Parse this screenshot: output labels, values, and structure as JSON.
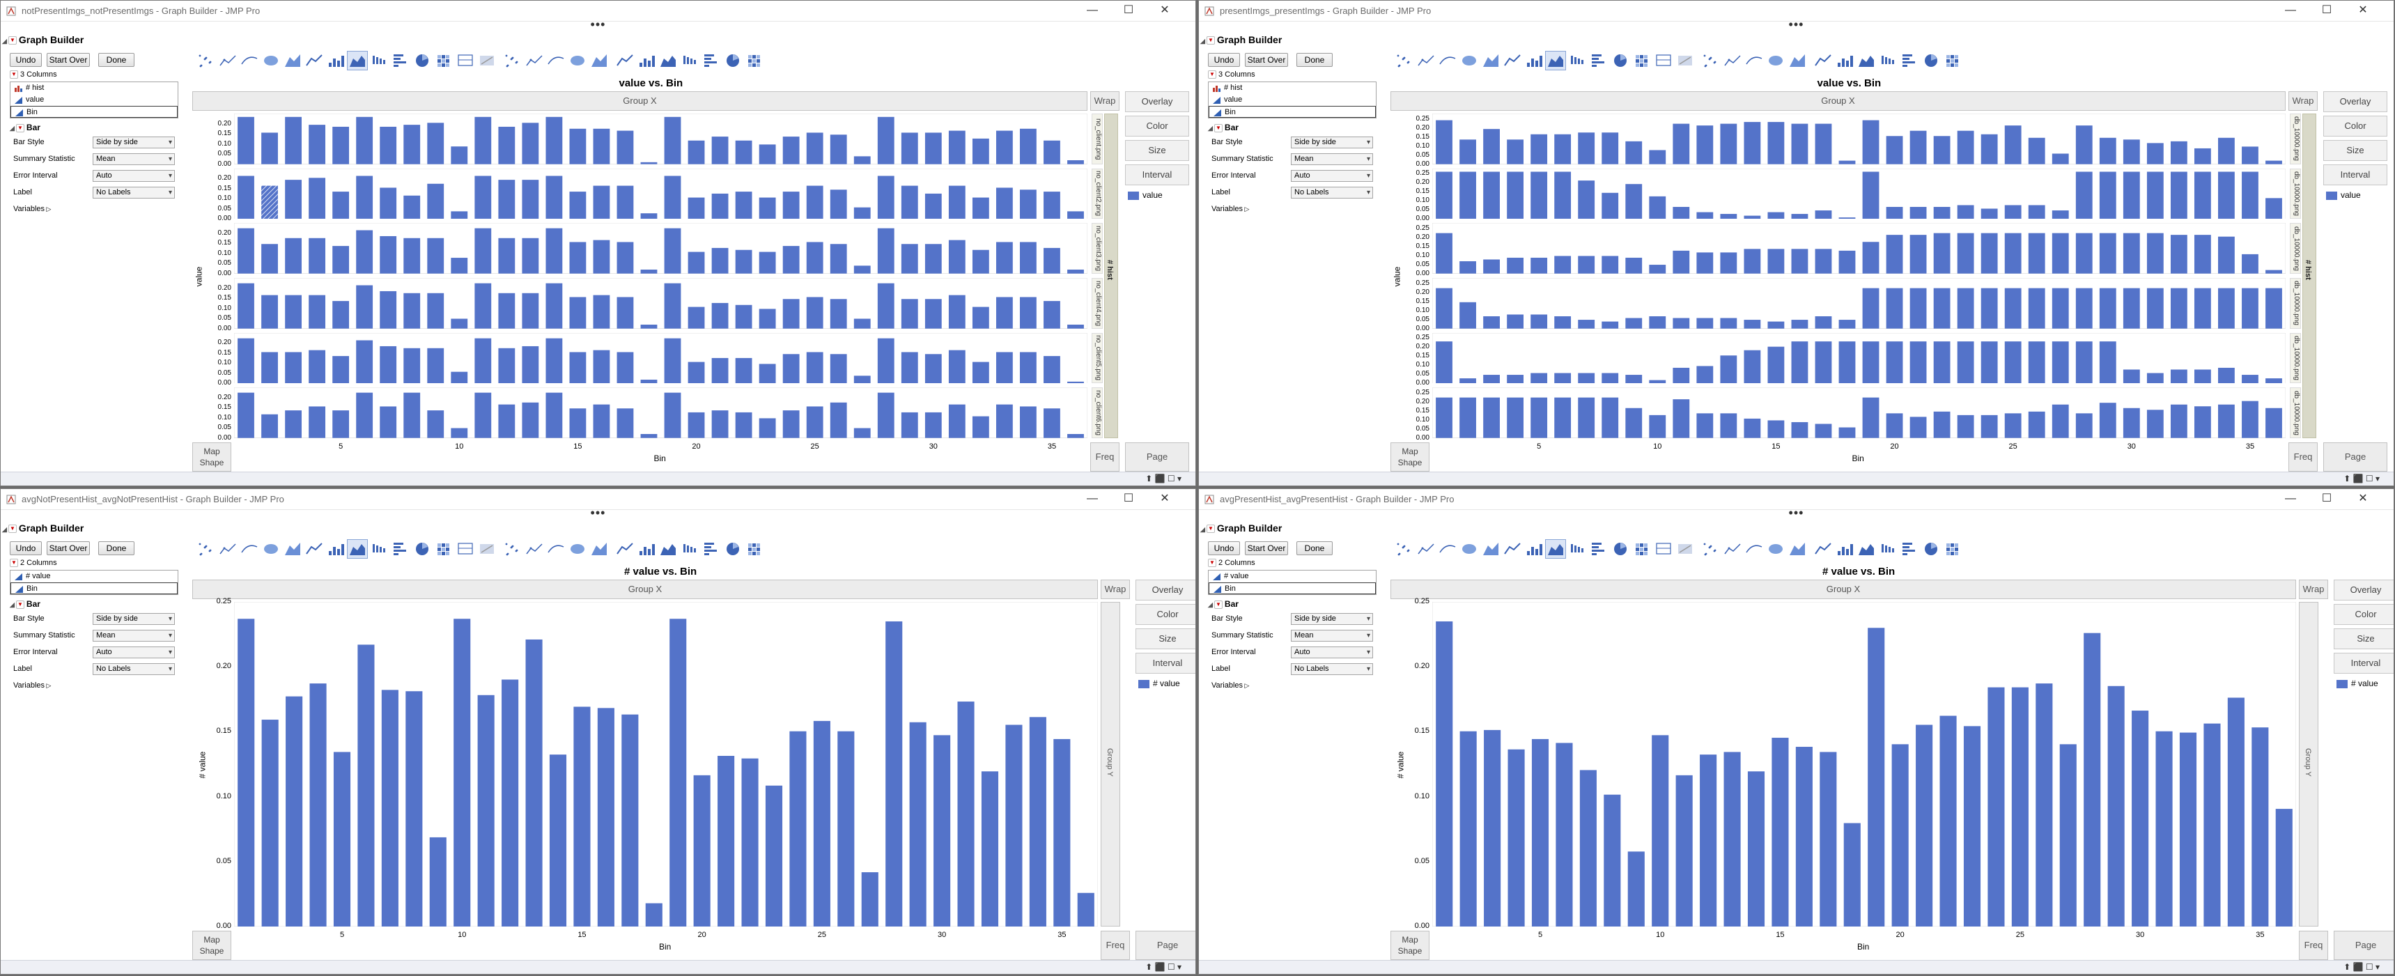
{
  "windows": [
    {
      "title": "notPresentImgs_notPresentImgs - Graph Builder - JMP Pro",
      "graph_title": "value vs. Bin",
      "columns_count": "3 Columns",
      "columns": [
        "# hist",
        "value",
        "Bin"
      ],
      "y_label": "value",
      "overlay_label": "Group Y",
      "wrap_label": "Wrap",
      "side_label": "# hist",
      "facet_labels": [
        "no_client.png",
        "no_client2.png",
        "no_client3.png",
        "no_client4.png",
        "no_client5.png",
        "no_client6.png"
      ],
      "legend": "value",
      "y_ticks": [
        "0.20",
        "0.15",
        "0.10",
        "0.05",
        "0.00"
      ],
      "chart_data": {
        "type": "bar",
        "xlabel": "Bin",
        "ylabel": "value",
        "ylim": [
          0,
          0.25
        ],
        "x_ticks": [
          5,
          10,
          15,
          20,
          25,
          30,
          35
        ],
        "categories": [
          1,
          2,
          3,
          4,
          5,
          6,
          7,
          8,
          9,
          10,
          11,
          12,
          13,
          14,
          15,
          16,
          17,
          18,
          19,
          20,
          21,
          22,
          23,
          24,
          25,
          26,
          27,
          28,
          29,
          30,
          31,
          32,
          33,
          34,
          35,
          36
        ],
        "series": [
          {
            "values": [
              0.24,
              0.16,
              0.24,
              0.2,
              0.19,
              0.24,
              0.19,
              0.2,
              0.21,
              0.09,
              0.24,
              0.19,
              0.21,
              0.24,
              0.18,
              0.18,
              0.17,
              0.01,
              0.24,
              0.12,
              0.14,
              0.12,
              0.1,
              0.14,
              0.16,
              0.15,
              0.04,
              0.24,
              0.16,
              0.16,
              0.17,
              0.13,
              0.17,
              0.18,
              0.12,
              0.02
            ]
          },
          {
            "values": [
              0.22,
              0.17,
              0.2,
              0.21,
              0.14,
              0.22,
              0.16,
              0.12,
              0.18,
              0.04,
              0.22,
              0.2,
              0.2,
              0.22,
              0.14,
              0.17,
              0.17,
              0.03,
              0.22,
              0.11,
              0.13,
              0.14,
              0.11,
              0.14,
              0.17,
              0.15,
              0.06,
              0.22,
              0.17,
              0.13,
              0.17,
              0.11,
              0.16,
              0.15,
              0.14,
              0.04
            ]
          },
          {
            "values": [
              0.23,
              0.15,
              0.18,
              0.18,
              0.14,
              0.22,
              0.19,
              0.18,
              0.18,
              0.08,
              0.23,
              0.18,
              0.18,
              0.23,
              0.16,
              0.17,
              0.16,
              0.02,
              0.23,
              0.11,
              0.13,
              0.12,
              0.11,
              0.14,
              0.16,
              0.15,
              0.04,
              0.23,
              0.15,
              0.15,
              0.17,
              0.12,
              0.16,
              0.16,
              0.13,
              0.02
            ]
          },
          {
            "values": [
              0.23,
              0.17,
              0.17,
              0.17,
              0.14,
              0.22,
              0.19,
              0.18,
              0.18,
              0.05,
              0.23,
              0.18,
              0.18,
              0.23,
              0.16,
              0.17,
              0.16,
              0.02,
              0.23,
              0.11,
              0.13,
              0.12,
              0.1,
              0.15,
              0.16,
              0.15,
              0.05,
              0.23,
              0.15,
              0.15,
              0.17,
              0.11,
              0.16,
              0.16,
              0.14,
              0.02
            ]
          },
          {
            "values": [
              0.23,
              0.16,
              0.16,
              0.17,
              0.14,
              0.22,
              0.19,
              0.18,
              0.18,
              0.06,
              0.23,
              0.18,
              0.19,
              0.23,
              0.16,
              0.17,
              0.16,
              0.02,
              0.23,
              0.11,
              0.13,
              0.13,
              0.1,
              0.15,
              0.16,
              0.15,
              0.04,
              0.23,
              0.16,
              0.15,
              0.17,
              0.11,
              0.16,
              0.16,
              0.14,
              0.01
            ]
          },
          {
            "values": [
              0.23,
              0.12,
              0.14,
              0.16,
              0.14,
              0.23,
              0.16,
              0.23,
              0.14,
              0.05,
              0.23,
              0.17,
              0.18,
              0.23,
              0.15,
              0.17,
              0.15,
              0.02,
              0.23,
              0.13,
              0.14,
              0.13,
              0.1,
              0.14,
              0.16,
              0.18,
              0.05,
              0.23,
              0.13,
              0.13,
              0.17,
              0.11,
              0.17,
              0.16,
              0.15,
              0.02
            ]
          }
        ]
      }
    },
    {
      "title": "presentImgs_presentImgs - Graph Builder - JMP Pro",
      "graph_title": "value vs. Bin",
      "columns_count": "3 Columns",
      "columns": [
        "# hist",
        "value",
        "Bin"
      ],
      "y_label": "value",
      "overlay_label": "Group Y",
      "wrap_label": "Wrap",
      "side_label": "# hist",
      "facet_labels": [
        "db_10000.png",
        "db_10000.png",
        "db_10000.png",
        "db_10000.png",
        "db_10000.png",
        "db_10000.png"
      ],
      "legend": "value",
      "y_ticks": [
        "0.25",
        "0.20",
        "0.15",
        "0.10",
        "0.05",
        "0.00"
      ],
      "chart_data": {
        "type": "bar",
        "xlabel": "Bin",
        "ylabel": "value",
        "ylim": [
          0,
          0.28
        ],
        "x_ticks": [
          5,
          10,
          15,
          20,
          25,
          30,
          35
        ],
        "categories": [
          1,
          2,
          3,
          4,
          5,
          6,
          7,
          8,
          9,
          10,
          11,
          12,
          13,
          14,
          15,
          16,
          17,
          18,
          19,
          20,
          21,
          22,
          23,
          24,
          25,
          26,
          27,
          28,
          29,
          30,
          31,
          32,
          33,
          34,
          35,
          36
        ],
        "series": [
          {
            "values": [
              0.25,
              0.14,
              0.2,
              0.14,
              0.17,
              0.17,
              0.18,
              0.18,
              0.13,
              0.08,
              0.23,
              0.22,
              0.23,
              0.24,
              0.24,
              0.23,
              0.23,
              0.02,
              0.25,
              0.16,
              0.19,
              0.16,
              0.19,
              0.17,
              0.22,
              0.15,
              0.06,
              0.22,
              0.15,
              0.14,
              0.12,
              0.13,
              0.09,
              0.15,
              0.1,
              0.02
            ]
          },
          {
            "values": [
              0.27,
              0.27,
              0.27,
              0.27,
              0.27,
              0.27,
              0.22,
              0.15,
              0.2,
              0.13,
              0.07,
              0.04,
              0.03,
              0.02,
              0.04,
              0.03,
              0.05,
              0.01,
              0.27,
              0.07,
              0.07,
              0.07,
              0.08,
              0.06,
              0.08,
              0.08,
              0.05,
              0.27,
              0.27,
              0.27,
              0.27,
              0.27,
              0.27,
              0.27,
              0.27,
              0.12
            ]
          },
          {
            "values": [
              0.23,
              0.07,
              0.08,
              0.09,
              0.09,
              0.1,
              0.1,
              0.1,
              0.09,
              0.05,
              0.13,
              0.12,
              0.12,
              0.14,
              0.14,
              0.14,
              0.14,
              0.13,
              0.18,
              0.22,
              0.22,
              0.23,
              0.23,
              0.23,
              0.23,
              0.23,
              0.23,
              0.23,
              0.23,
              0.23,
              0.23,
              0.22,
              0.22,
              0.21,
              0.11,
              0.02
            ]
          },
          {
            "values": [
              0.23,
              0.15,
              0.07,
              0.08,
              0.08,
              0.07,
              0.05,
              0.04,
              0.06,
              0.07,
              0.06,
              0.06,
              0.06,
              0.05,
              0.04,
              0.05,
              0.07,
              0.05,
              0.23,
              0.23,
              0.23,
              0.23,
              0.23,
              0.23,
              0.23,
              0.23,
              0.23,
              0.23,
              0.23,
              0.23,
              0.23,
              0.23,
              0.23,
              0.23,
              0.23,
              0.23
            ]
          },
          {
            "values": [
              0.24,
              0.03,
              0.05,
              0.05,
              0.06,
              0.06,
              0.06,
              0.06,
              0.05,
              0.02,
              0.09,
              0.1,
              0.16,
              0.19,
              0.21,
              0.24,
              0.24,
              0.24,
              0.24,
              0.24,
              0.24,
              0.24,
              0.24,
              0.24,
              0.24,
              0.24,
              0.24,
              0.24,
              0.24,
              0.08,
              0.06,
              0.08,
              0.08,
              0.09,
              0.05,
              0.03
            ]
          },
          {
            "values": [
              0.23,
              0.23,
              0.23,
              0.23,
              0.23,
              0.23,
              0.23,
              0.23,
              0.17,
              0.13,
              0.22,
              0.14,
              0.14,
              0.11,
              0.1,
              0.09,
              0.08,
              0.06,
              0.23,
              0.14,
              0.12,
              0.15,
              0.13,
              0.13,
              0.14,
              0.15,
              0.19,
              0.14,
              0.2,
              0.17,
              0.16,
              0.19,
              0.18,
              0.19,
              0.21,
              0.17
            ]
          }
        ]
      }
    },
    {
      "title": "avgNotPresentHist_avgNotPresentHist - Graph Builder - JMP Pro",
      "graph_title": "# value vs. Bin",
      "columns_count": "2 Columns",
      "columns": [
        "# value",
        "Bin"
      ],
      "y_label": "# value",
      "overlay_label": "Group Y",
      "wrap_label": "Wrap",
      "legend": "# value",
      "chart_data": {
        "type": "bar",
        "xlabel": "Bin",
        "ylabel": "# value",
        "ylim": [
          0,
          0.25
        ],
        "y_ticks": [
          "0.25",
          "0.20",
          "0.15",
          "0.10",
          "0.05",
          "0.00"
        ],
        "x_ticks": [
          5,
          10,
          15,
          20,
          25,
          30,
          35
        ],
        "categories": [
          1,
          2,
          3,
          4,
          5,
          6,
          7,
          8,
          9,
          10,
          11,
          12,
          13,
          14,
          15,
          16,
          17,
          18,
          19,
          20,
          21,
          22,
          23,
          24,
          25,
          26,
          27,
          28,
          29,
          30,
          31,
          32,
          33,
          34,
          35,
          36
        ],
        "series": [
          {
            "values": [
              0.238,
              0.16,
              0.178,
              0.188,
              0.135,
              0.218,
              0.183,
              0.182,
              0.069,
              0.238,
              0.179,
              0.191,
              0.222,
              0.133,
              0.17,
              0.169,
              0.164,
              0.018,
              0.238,
              0.117,
              0.132,
              0.13,
              0.109,
              0.151,
              0.159,
              0.151,
              0.042,
              0.236,
              0.158,
              0.148,
              0.174,
              0.12,
              0.156,
              0.162,
              0.145,
              0.026
            ]
          }
        ]
      }
    },
    {
      "title": "avgPresentHist_avgPresentHist - Graph Builder - JMP Pro",
      "graph_title": "# value vs. Bin",
      "columns_count": "2 Columns",
      "columns": [
        "# value",
        "Bin"
      ],
      "y_label": "# value",
      "overlay_label": "Group Y",
      "wrap_label": "Wrap",
      "legend": "# value",
      "chart_data": {
        "type": "bar",
        "xlabel": "Bin",
        "ylabel": "# value",
        "ylim": [
          0,
          0.25
        ],
        "y_ticks": [
          "0.25",
          "0.20",
          "0.15",
          "0.10",
          "0.05",
          "0.00"
        ],
        "x_ticks": [
          5,
          10,
          15,
          20,
          25,
          30,
          35
        ],
        "categories": [
          1,
          2,
          3,
          4,
          5,
          6,
          7,
          8,
          9,
          10,
          11,
          12,
          13,
          14,
          15,
          16,
          17,
          18,
          19,
          20,
          21,
          22,
          23,
          24,
          25,
          26,
          27,
          28,
          29,
          30,
          31,
          32,
          33,
          34,
          35,
          36
        ],
        "series": [
          {
            "values": [
              0.236,
              0.151,
              0.152,
              0.137,
              0.145,
              0.142,
              0.121,
              0.102,
              0.058,
              0.148,
              0.117,
              0.133,
              0.135,
              0.12,
              0.146,
              0.139,
              0.135,
              0.08,
              0.231,
              0.141,
              0.156,
              0.163,
              0.155,
              0.185,
              0.185,
              0.188,
              0.141,
              0.227,
              0.186,
              0.167,
              0.151,
              0.15,
              0.157,
              0.177,
              0.154,
              0.091
            ]
          }
        ]
      }
    }
  ],
  "common": {
    "header": "Graph Builder",
    "undo": "Undo",
    "start_over": "Start Over",
    "done": "Done",
    "bar_section": "Bar",
    "props": [
      {
        "label": "Bar Style",
        "value": "Side by side"
      },
      {
        "label": "Summary Statistic",
        "value": "Mean"
      },
      {
        "label": "Error Interval",
        "value": "Auto"
      },
      {
        "label": "Label",
        "value": "No Labels"
      }
    ],
    "variables": "Variables",
    "group_x": "Group X",
    "side_buttons": [
      "Overlay",
      "Color",
      "Size",
      "Interval"
    ],
    "freq": "Freq",
    "page": "Page",
    "map_shape": "Map\nShape",
    "status_icons": "⬆ ⬛ ☐ ▾",
    "accent_color": "#5473c9",
    "win_ctrls": [
      "—",
      "☐",
      "✕"
    ],
    "dots": "•••"
  }
}
